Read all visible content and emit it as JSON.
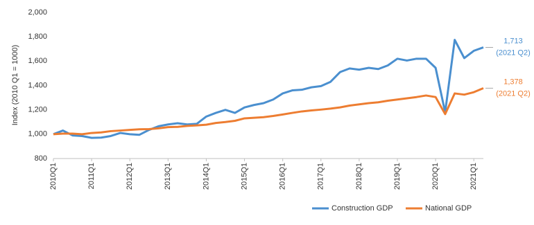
{
  "chart_data": {
    "type": "line",
    "y_label": "Index (2010 Q1 = 1000)",
    "categories": [
      "2010Q1",
      null,
      null,
      null,
      "2011Q1",
      null,
      null,
      null,
      "2012Q1",
      null,
      null,
      null,
      "2013Q1",
      null,
      null,
      null,
      "2014Q1",
      null,
      null,
      null,
      "2015Q1",
      null,
      null,
      null,
      "2016Q1",
      null,
      null,
      null,
      "2017Q1",
      null,
      null,
      null,
      "2018Q1",
      null,
      null,
      null,
      "2019Q1",
      null,
      null,
      null,
      "2020Q1",
      null,
      null,
      null,
      "2021Q1",
      null
    ],
    "ylim": [
      800,
      2000
    ],
    "yticks": [
      800,
      {
        "value": 1000,
        "label": "1,000"
      },
      {
        "value": 1200,
        "label": "1,200"
      },
      {
        "value": 1400,
        "label": "1,400"
      },
      {
        "value": 1600,
        "label": "1,600"
      },
      {
        "value": 1800,
        "label": "1,800"
      },
      {
        "value": 2000,
        "label": "2,000"
      }
    ],
    "series": [
      {
        "name": "Construction GDP",
        "color": "#4a8fcf",
        "values": [
          1000,
          1030,
          990,
          985,
          970,
          972,
          985,
          1010,
          1000,
          995,
          1035,
          1065,
          1080,
          1090,
          1080,
          1085,
          1145,
          1175,
          1200,
          1175,
          1220,
          1240,
          1255,
          1285,
          1335,
          1360,
          1365,
          1385,
          1395,
          1430,
          1510,
          1540,
          1530,
          1545,
          1535,
          1565,
          1620,
          1605,
          1620,
          1620,
          1545,
          1180,
          1775,
          1625,
          1685,
          1713
        ],
        "value_labels": [
          null,
          null,
          null,
          null,
          null,
          null,
          null,
          null,
          null,
          null,
          null,
          null,
          null,
          null,
          null,
          null,
          null,
          null,
          null,
          null,
          null,
          null,
          null,
          null,
          null,
          null,
          null,
          null,
          null,
          null,
          null,
          null,
          null,
          null,
          null,
          null,
          null,
          null,
          null,
          null,
          null,
          null,
          null,
          null,
          null,
          "1,713"
        ],
        "annotation": "(2021 Q2)"
      },
      {
        "name": "National GDP",
        "color": "#ed7d31",
        "values": [
          1000,
          1005,
          1005,
          1000,
          1010,
          1015,
          1025,
          1030,
          1035,
          1040,
          1042,
          1048,
          1058,
          1060,
          1068,
          1072,
          1078,
          1092,
          1100,
          1110,
          1130,
          1135,
          1140,
          1150,
          1162,
          1175,
          1187,
          1195,
          1202,
          1210,
          1220,
          1235,
          1245,
          1255,
          1262,
          1275,
          1285,
          1295,
          1305,
          1318,
          1305,
          1165,
          1335,
          1325,
          1345,
          1378
        ],
        "value_labels": [
          null,
          null,
          null,
          null,
          null,
          null,
          null,
          null,
          null,
          null,
          null,
          null,
          null,
          null,
          null,
          null,
          null,
          null,
          null,
          null,
          null,
          null,
          null,
          null,
          null,
          null,
          null,
          null,
          null,
          null,
          null,
          null,
          null,
          null,
          null,
          null,
          null,
          null,
          null,
          null,
          null,
          null,
          null,
          null,
          null,
          "1,378"
        ],
        "annotation": "(2021 Q2)"
      }
    ],
    "legend": "bottom-right"
  }
}
